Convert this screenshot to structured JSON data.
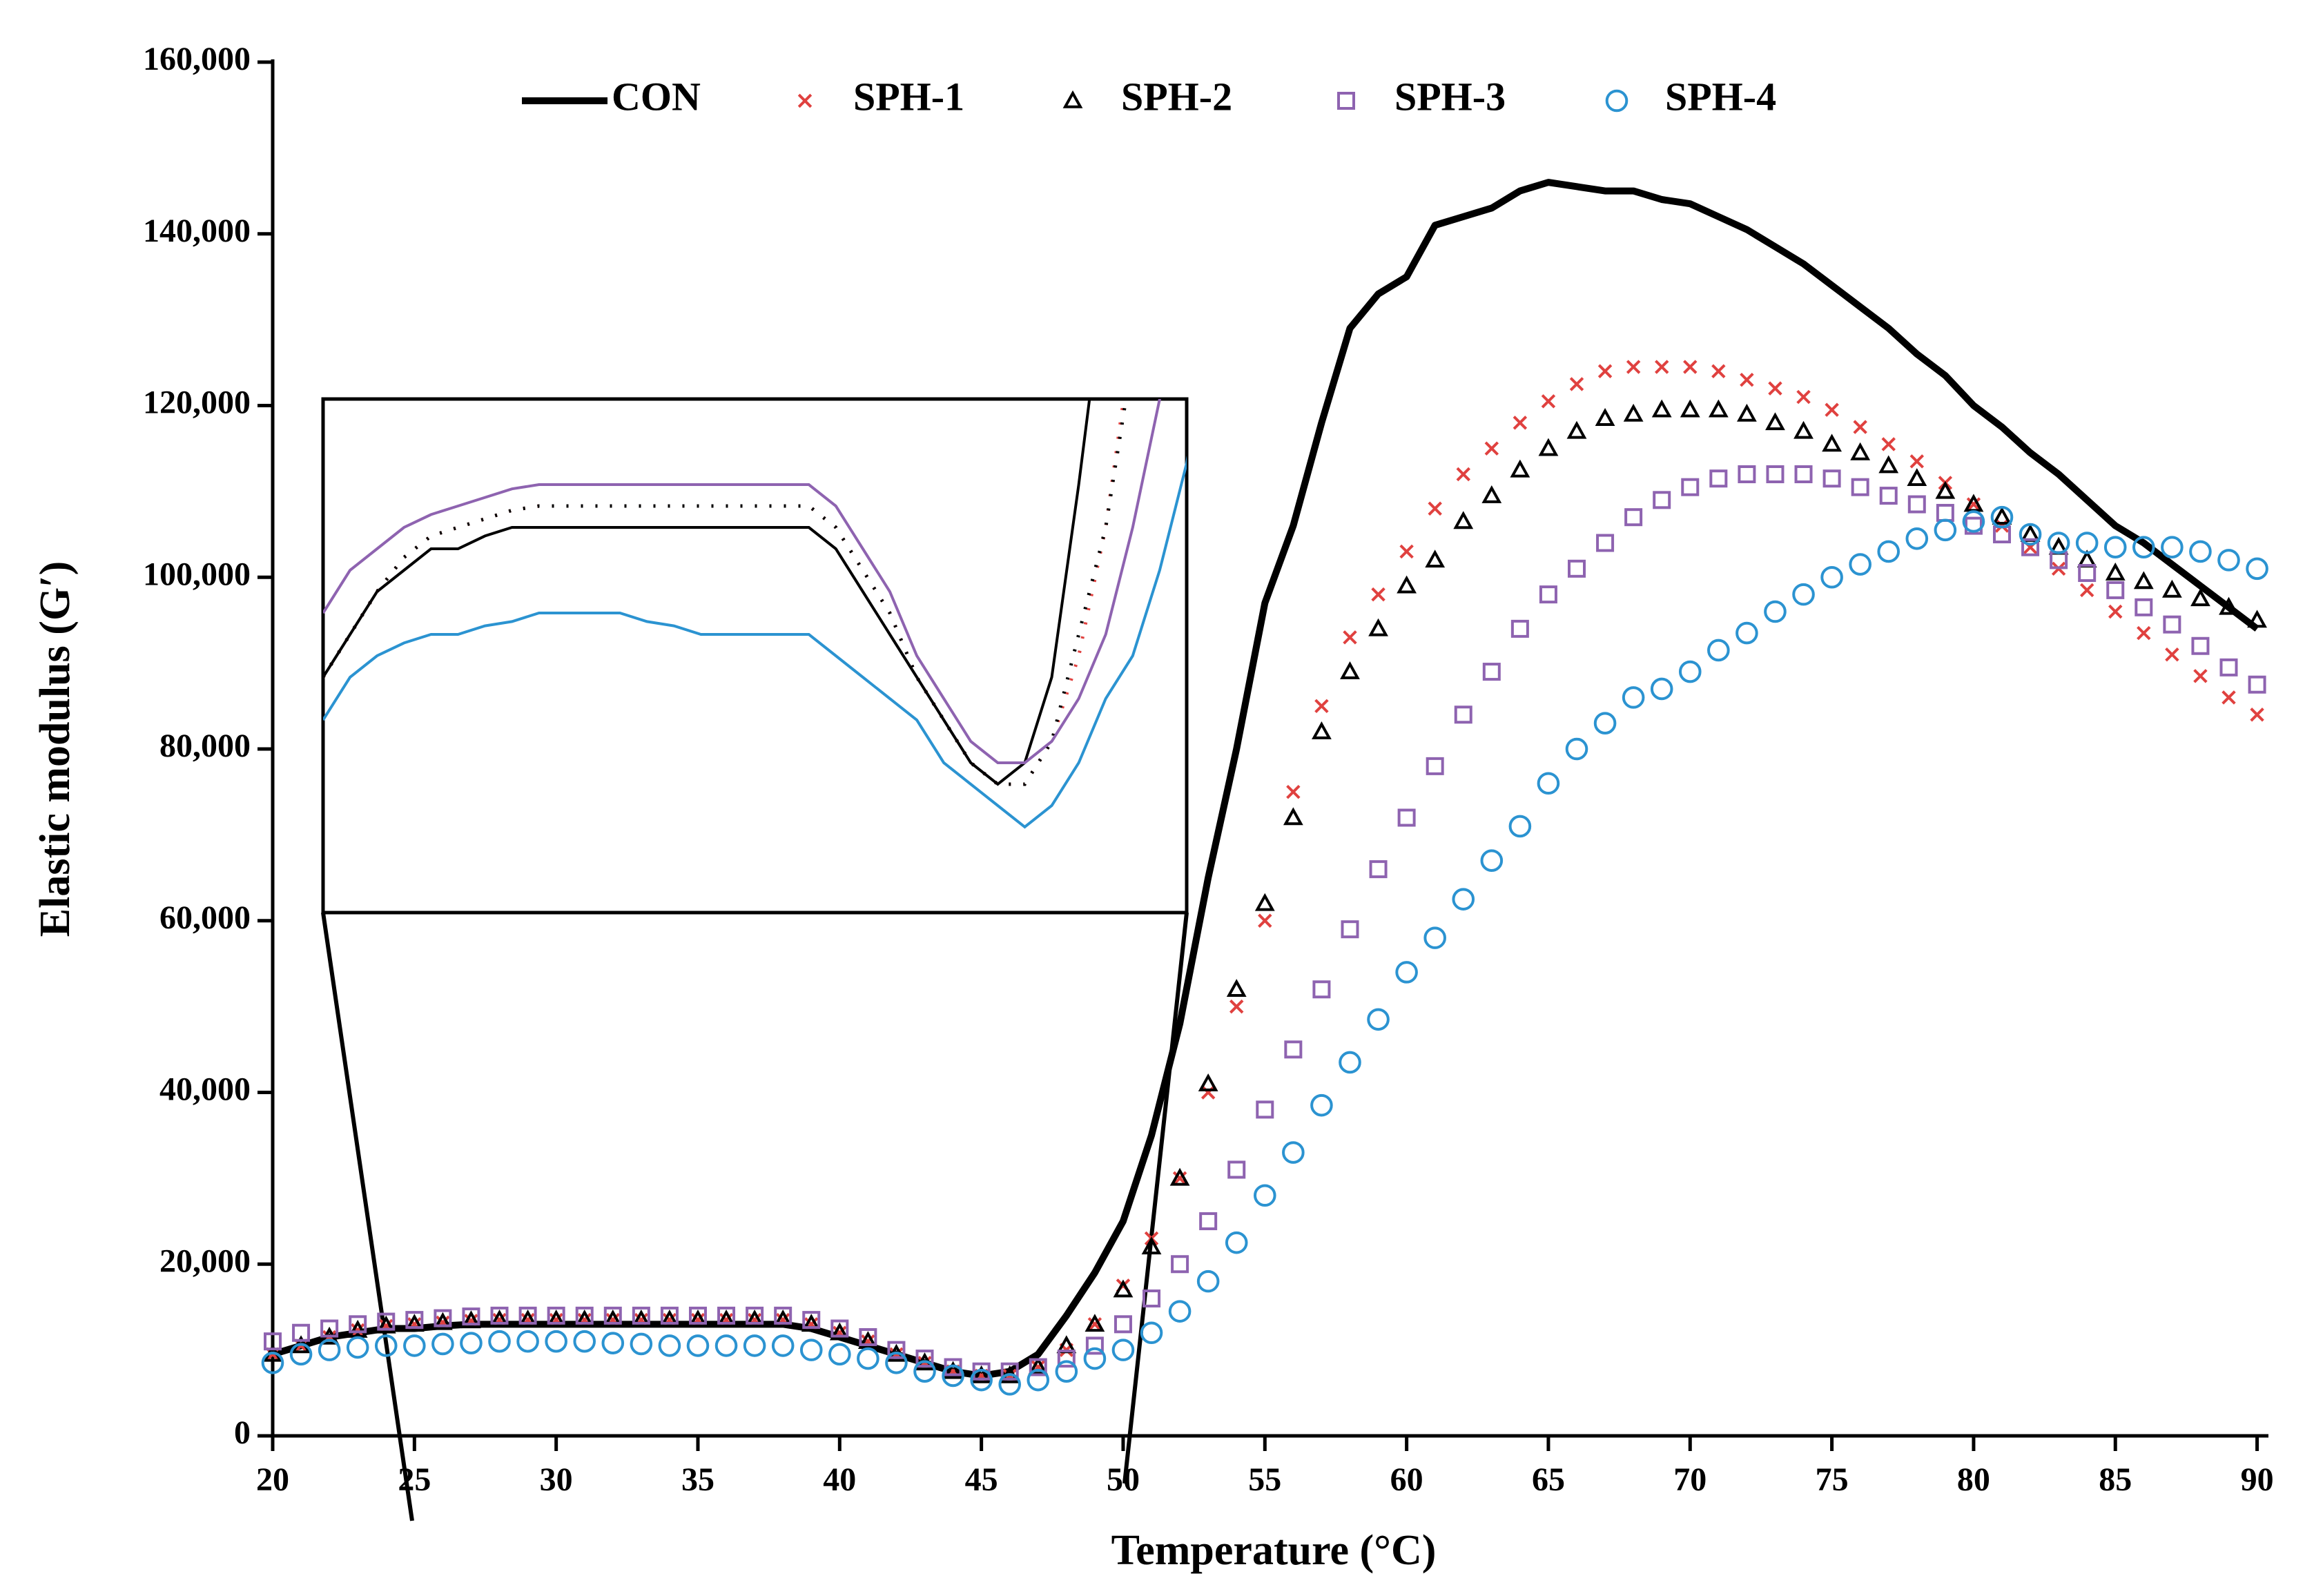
{
  "chart_data": {
    "type": "line",
    "x_label": "Temperature (°C)",
    "y_label": "Elastic modulus (G′)",
    "xlim": [
      20,
      90.4
    ],
    "ylim": [
      0,
      160000
    ],
    "xticks": [
      20,
      25,
      30,
      35,
      40,
      45,
      50,
      55,
      60,
      65,
      70,
      75,
      80,
      85,
      90
    ],
    "yticks": [
      {
        "value": 0,
        "label": "0"
      },
      {
        "value": 20000,
        "label": "20,000"
      },
      {
        "value": 40000,
        "label": "40,000"
      },
      {
        "value": 60000,
        "label": "60,000"
      },
      {
        "value": 80000,
        "label": "80,000"
      },
      {
        "value": 100000,
        "label": "100,000"
      },
      {
        "value": 120000,
        "label": "120,000"
      },
      {
        "value": 140000,
        "label": "140,000"
      },
      {
        "value": 160000,
        "label": "160,000"
      }
    ],
    "legend": "top",
    "x": [
      20,
      21,
      22,
      23,
      24,
      25,
      26,
      27,
      28,
      29,
      30,
      31,
      32,
      33,
      34,
      35,
      36,
      37,
      38,
      39,
      40,
      41,
      42,
      43,
      44,
      45,
      46,
      47,
      48,
      49,
      50,
      51,
      52,
      53,
      54,
      55,
      56,
      57,
      58,
      59,
      60,
      61,
      62,
      63,
      64,
      65,
      66,
      67,
      68,
      69,
      70,
      71,
      72,
      73,
      74,
      75,
      76,
      77,
      78,
      79,
      80,
      81,
      82,
      83,
      84,
      85,
      86,
      87,
      88,
      89,
      90
    ],
    "series": [
      {
        "name": "CON",
        "color": "#000000",
        "marker": "line",
        "values": [
          9500,
          10500,
          11500,
          12000,
          12500,
          12500,
          12800,
          13000,
          13000,
          13000,
          13000,
          13000,
          13000,
          13000,
          13000,
          13000,
          13000,
          13000,
          13000,
          12500,
          11500,
          10500,
          9500,
          8500,
          7500,
          7000,
          7500,
          9500,
          14000,
          19000,
          25000,
          35000,
          48000,
          65000,
          80000,
          97000,
          106000,
          118000,
          129000,
          133000,
          135000,
          141000,
          142000,
          143000,
          145000,
          146000,
          145500,
          145000,
          145000,
          144000,
          143500,
          142000,
          140500,
          138500,
          136500,
          134000,
          131500,
          129000,
          126000,
          123500,
          120000,
          117500,
          114500,
          112000,
          109000,
          106000,
          104000,
          101500,
          99000,
          96500,
          94000
        ]
      },
      {
        "name": "SPH-1",
        "color": "#e0413f",
        "marker": "x",
        "values": [
          9500,
          10500,
          11500,
          12300,
          12800,
          13000,
          13200,
          13400,
          13500,
          13500,
          13500,
          13500,
          13500,
          13500,
          13500,
          13500,
          13500,
          13500,
          13500,
          13000,
          12000,
          11000,
          9500,
          8500,
          7500,
          7000,
          7000,
          8000,
          10000,
          13000,
          17500,
          23000,
          30000,
          40000,
          50000,
          60000,
          75000,
          85000,
          93000,
          98000,
          103000,
          108000,
          112000,
          115000,
          118000,
          120500,
          122500,
          124000,
          124500,
          124500,
          124500,
          124000,
          123000,
          122000,
          121000,
          119500,
          117500,
          115500,
          113500,
          111000,
          108500,
          106000,
          103500,
          101000,
          98500,
          96000,
          93500,
          91000,
          88500,
          86000,
          84000
        ]
      },
      {
        "name": "SPH-2",
        "color": "#000000",
        "marker": "triangle",
        "values": [
          9500,
          10500,
          11500,
          12300,
          12800,
          13000,
          13200,
          13400,
          13500,
          13500,
          13500,
          13500,
          13500,
          13500,
          13500,
          13500,
          13500,
          13500,
          13500,
          13000,
          12000,
          11000,
          9500,
          8500,
          7500,
          7000,
          7000,
          8000,
          10500,
          13000,
          17000,
          22000,
          30000,
          41000,
          52000,
          62000,
          72000,
          82000,
          89000,
          94000,
          99000,
          102000,
          106500,
          109500,
          112500,
          115000,
          117000,
          118500,
          119000,
          119500,
          119500,
          119500,
          119000,
          118000,
          117000,
          115500,
          114500,
          113000,
          111500,
          110000,
          108500,
          107000,
          105000,
          103500,
          102000,
          100500,
          99500,
          98500,
          97500,
          96500,
          95000
        ]
      },
      {
        "name": "SPH-3",
        "color": "#8e63b0",
        "marker": "square",
        "values": [
          11000,
          12000,
          12500,
          13000,
          13300,
          13500,
          13700,
          13900,
          14000,
          14000,
          14000,
          14000,
          14000,
          14000,
          14000,
          14000,
          14000,
          14000,
          14000,
          13500,
          12500,
          11500,
          10000,
          9000,
          8000,
          7500,
          7500,
          8000,
          9000,
          10500,
          13000,
          16000,
          20000,
          25000,
          31000,
          38000,
          45000,
          52000,
          59000,
          66000,
          72000,
          78000,
          84000,
          89000,
          94000,
          98000,
          101000,
          104000,
          107000,
          109000,
          110500,
          111500,
          112000,
          112000,
          112000,
          111500,
          110500,
          109500,
          108500,
          107500,
          106000,
          105000,
          103500,
          102000,
          100500,
          98500,
          96500,
          94500,
          92000,
          89500,
          87500
        ]
      },
      {
        "name": "SPH-4",
        "color": "#2b93d1",
        "marker": "circle",
        "values": [
          8500,
          9500,
          10000,
          10300,
          10500,
          10500,
          10700,
          10800,
          11000,
          11000,
          11000,
          11000,
          10800,
          10700,
          10500,
          10500,
          10500,
          10500,
          10500,
          10000,
          9500,
          9000,
          8500,
          7500,
          7000,
          6500,
          6000,
          6500,
          7500,
          9000,
          10000,
          12000,
          14500,
          18000,
          22500,
          28000,
          33000,
          38500,
          43500,
          48500,
          54000,
          58000,
          62500,
          67000,
          71000,
          76000,
          80000,
          83000,
          86000,
          87000,
          89000,
          91500,
          93500,
          96000,
          98000,
          100000,
          101500,
          103000,
          104500,
          105500,
          106500,
          107000,
          105000,
          104000,
          104000,
          103500,
          103500,
          103500,
          103000,
          102000,
          101000
        ]
      }
    ],
    "inset": {
      "xlim": [
        20,
        52
      ],
      "ylim": [
        4000,
        16000
      ]
    }
  }
}
